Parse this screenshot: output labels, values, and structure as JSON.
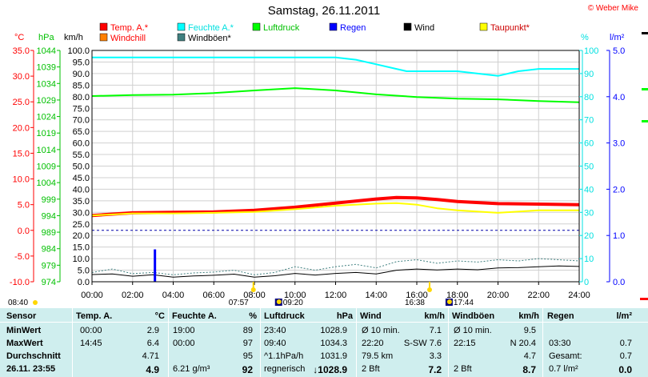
{
  "header": {
    "title": "Samstag, 26.11.2011",
    "credit": "© Weber Mike"
  },
  "legend": [
    {
      "label": "Temp. A.*",
      "color": "#ff0000",
      "text_color": "#ff0000"
    },
    {
      "label": "Feuchte A.*",
      "color": "#00ffff",
      "text_color": "#00e0e0"
    },
    {
      "label": "Luftdruck",
      "color": "#00ff00",
      "text_color": "#00c000"
    },
    {
      "label": "Regen",
      "color": "#0000ff",
      "text_color": "#0000ff"
    },
    {
      "label": "Wind",
      "color": "#000000",
      "text_color": "#000000"
    },
    {
      "label": "Taupunkt*",
      "color": "#ffff00",
      "text_color": "#cc0000"
    },
    {
      "label": "Windchill",
      "color": "#ff8000",
      "text_color": "#ff0000"
    },
    {
      "label": "Windböen*",
      "color": "#408080",
      "text_color": "#000000"
    }
  ],
  "axis_units": {
    "temp": "°C",
    "pressure": "hPa",
    "wind": "km/h",
    "humidity": "%",
    "rain": "l/m²"
  },
  "chart_data": {
    "type": "line",
    "x_ticks": [
      "00:00",
      "02:00",
      "04:00",
      "06:00",
      "08:00",
      "10:00",
      "12:00",
      "14:00",
      "16:00",
      "18:00",
      "20:00",
      "22:00",
      "24:00"
    ],
    "xlim": [
      0,
      24
    ],
    "temp_ticks": [
      "35.0",
      "30.0",
      "25.0",
      "20.0",
      "15.0",
      "10.0",
      "5.0",
      "0.0",
      "-5.0",
      "-10.0"
    ],
    "temp_lim": [
      -10,
      35
    ],
    "pressure_ticks": [
      "1044",
      "1039",
      "1034",
      "1029",
      "1024",
      "1019",
      "1014",
      "1009",
      "1004",
      "999",
      "994",
      "989",
      "984",
      "979",
      "974"
    ],
    "pressure_lim": [
      974,
      1044
    ],
    "wind_ticks": [
      "100.0",
      "95.0",
      "90.0",
      "85.0",
      "80.0",
      "75.0",
      "70.0",
      "65.0",
      "60.0",
      "55.0",
      "50.0",
      "45.0",
      "40.0",
      "35.0",
      "30.0",
      "25.0",
      "20.0",
      "15.0",
      "10.0",
      "5.0",
      "0.0"
    ],
    "wind_lim": [
      0,
      100
    ],
    "humidity_ticks": [
      "100",
      "90",
      "80",
      "70",
      "60",
      "50",
      "40",
      "30",
      "20",
      "10",
      "0"
    ],
    "humidity_lim": [
      0,
      100
    ],
    "rain_ticks": [
      "5.0",
      "4.0",
      "3.0",
      "2.0",
      "1.0",
      "0.0"
    ],
    "rain_lim": [
      0,
      5
    ],
    "series": [
      {
        "name": "Temp. A.*",
        "color": "#ff0000",
        "width": 4,
        "axis": "temp",
        "x": [
          0,
          2,
          4,
          6,
          8,
          10,
          12,
          14,
          15,
          16,
          17,
          18,
          20,
          22,
          24
        ],
        "y": [
          2.9,
          3.4,
          3.5,
          3.6,
          3.9,
          4.5,
          5.3,
          6.1,
          6.4,
          6.3,
          6.0,
          5.6,
          5.2,
          5.1,
          5.0
        ]
      },
      {
        "name": "Taupunkt*",
        "color": "#ffff00",
        "width": 2,
        "axis": "temp",
        "x": [
          0,
          2,
          4,
          6,
          8,
          10,
          12,
          14,
          15,
          16,
          17,
          18,
          20,
          22,
          24
        ],
        "y": [
          2.9,
          3.3,
          3.3,
          3.4,
          3.6,
          4.1,
          4.8,
          5.2,
          5.3,
          5.0,
          4.3,
          3.9,
          3.4,
          3.9,
          3.9
        ]
      },
      {
        "name": "Feuchte A.*",
        "color": "#00ffff",
        "width": 2,
        "axis": "humidity",
        "x": [
          0,
          2,
          4,
          6,
          8,
          10,
          12,
          13,
          14,
          15,
          15.5,
          16,
          17,
          18,
          19,
          20,
          21,
          22,
          24
        ],
        "y": [
          97,
          97,
          97,
          97,
          97,
          97,
          97,
          96,
          94,
          92,
          91,
          91,
          91,
          91,
          90,
          89,
          91,
          92,
          92
        ]
      },
      {
        "name": "Luftdruck",
        "color": "#00ff00",
        "width": 2,
        "axis": "pressure",
        "x": [
          0,
          2,
          4,
          6,
          8,
          10,
          12,
          14,
          16,
          18,
          20,
          22,
          24
        ],
        "y": [
          1030.2,
          1030.5,
          1030.6,
          1031.1,
          1031.9,
          1032.6,
          1031.9,
          1030.7,
          1029.9,
          1029.4,
          1029.2,
          1028.7,
          1028.3
        ]
      },
      {
        "name": "Wind",
        "color": "#000000",
        "width": 1,
        "axis": "wind",
        "x": [
          0,
          1,
          2,
          3,
          4,
          5,
          6,
          7,
          8,
          9,
          10,
          11,
          12,
          13,
          14,
          15,
          16,
          17,
          18,
          19,
          20,
          21,
          22,
          23,
          24
        ],
        "y": [
          3.1,
          3.4,
          2.4,
          3.0,
          2.0,
          2.5,
          2.8,
          3.3,
          2.0,
          2.6,
          3.6,
          2.9,
          3.6,
          4.0,
          3.4,
          5.0,
          5.5,
          5.1,
          5.5,
          5.2,
          6.0,
          6.1,
          6.5,
          6.8,
          6.6
        ]
      },
      {
        "name": "Windböen*",
        "color": "#408080",
        "width": 1,
        "dash": "2,2",
        "axis": "wind",
        "x": [
          0,
          1,
          2,
          3,
          4,
          5,
          6,
          7,
          8,
          9,
          10,
          11,
          12,
          13,
          14,
          15,
          16,
          17,
          18,
          19,
          20,
          21,
          22,
          23,
          24
        ],
        "y": [
          4.0,
          5.5,
          3.5,
          4.0,
          3.0,
          3.8,
          4.2,
          5.0,
          3.0,
          4.0,
          6.5,
          5.0,
          6.5,
          7.5,
          6.0,
          8.7,
          9.5,
          8.0,
          9.0,
          8.5,
          9.5,
          9.0,
          10.0,
          9.5,
          9.0
        ]
      }
    ],
    "rain_events": [
      {
        "x": 3.1,
        "value": 0.7
      }
    ],
    "reference_lines": [
      {
        "axis": "temp",
        "value": 0,
        "color": "#0000aa"
      }
    ],
    "sun_marks": [
      {
        "label": "07:57",
        "x": 7.95,
        "icon": "sunrise"
      },
      {
        "label": "16:38",
        "x": 16.63,
        "icon": "sunset"
      }
    ],
    "moon_marks": [
      {
        "label": "09:20",
        "x": 9.33,
        "icon": "moonrise"
      },
      {
        "label": "17:44",
        "x": 17.73,
        "icon": "moonset"
      }
    ],
    "corner_time": "08:40"
  },
  "stats": {
    "headers": {
      "sensor": "Sensor",
      "temp": "Temp. A.",
      "temp_unit": "°C",
      "hum": "Feuchte A.",
      "hum_unit": "%",
      "press": "Luftdruck",
      "press_unit": "hPa",
      "wind": "Wind",
      "wind_unit": "km/h",
      "gust": "Windböen",
      "gust_unit": "km/h",
      "rain": "Regen",
      "rain_unit": "l/m²"
    },
    "rows": [
      {
        "label": "MinWert",
        "temp_time": "00:00",
        "temp_val": "2.9",
        "hum_time": "19:00",
        "hum_val": "89",
        "press_time": "23:40",
        "press_val": "1028.9",
        "wind_time": "Ø 10 min.",
        "wind_val": "7.1",
        "gust_time": "Ø 10 min.",
        "gust_val": "9.5",
        "rain_time": "",
        "rain_val": ""
      },
      {
        "label": "MaxWert",
        "temp_time": "14:45",
        "temp_val": "6.4",
        "hum_time": "00:00",
        "hum_val": "97",
        "press_time": "09:40",
        "press_val": "1034.3",
        "wind_time": "22:20",
        "wind_mid": "S-SW 7.6",
        "wind_val": "",
        "gust_time": "22:15",
        "gust_mid": "N 20.4",
        "gust_val": "",
        "rain_time": "03:30",
        "rain_val": "0.7"
      },
      {
        "label": "Durchschnitt",
        "temp_time": "",
        "temp_val": "4.71",
        "hum_time": "",
        "hum_val": "95",
        "press_time": "^1.1hPa/h",
        "press_val": "1031.9",
        "wind_time": "79.5 km",
        "wind_val": "3.3",
        "gust_time": "",
        "gust_val": "4.7",
        "rain_time": "Gesamt:",
        "rain_val": "0.7"
      },
      {
        "label": "26.11. 23:55",
        "temp_time": "",
        "temp_val": "4.9",
        "hum_time": "6.21 g/m³",
        "hum_val": "92",
        "press_time": "regnerisch",
        "press_val": "1028.9",
        "wind_time": "2 Bft",
        "wind_val": "7.2",
        "gust_time": "2 Bft",
        "gust_val": "8.7",
        "rain_time": "0.7 l/m²",
        "rain_val": "0.0"
      }
    ]
  }
}
